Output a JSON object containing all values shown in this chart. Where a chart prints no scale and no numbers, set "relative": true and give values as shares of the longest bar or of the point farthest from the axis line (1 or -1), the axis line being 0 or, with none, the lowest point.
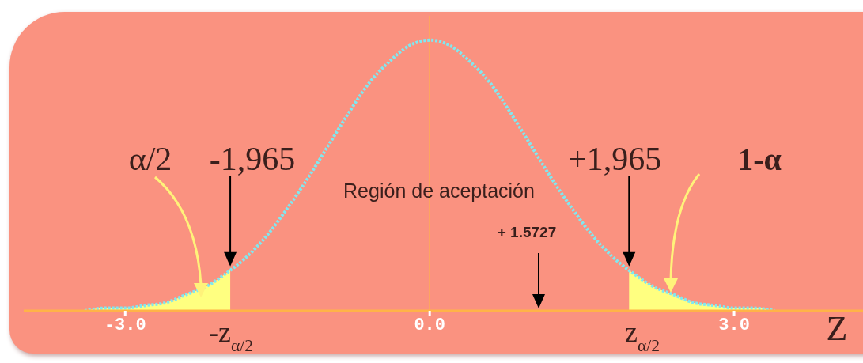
{
  "chart_data": {
    "type": "line",
    "relative": true,
    "xlabel": "Z",
    "xlim": [
      -4.0,
      4.27
    ],
    "xticks": [
      {
        "value": -3,
        "label": "-3.0"
      },
      {
        "value": 0,
        "label": "0.0"
      },
      {
        "value": 3,
        "label": "3.0"
      }
    ],
    "x": [
      -3.4,
      -3.2,
      -3.0,
      -2.8,
      -2.6,
      -2.4,
      -2.2,
      -2.0,
      -1.8,
      -1.6,
      -1.4,
      -1.2,
      -1.0,
      -0.8,
      -0.6,
      -0.4,
      -0.2,
      0,
      0.2,
      0.4,
      0.6,
      0.8,
      1.0,
      1.2,
      1.4,
      1.6,
      1.8,
      2.0,
      2.2,
      2.4,
      2.6,
      2.8,
      3.0,
      3.2,
      3.4
    ],
    "series": [
      {
        "type": "area",
        "color": "#ffff80",
        "x": [
          -3.4,
          -3.2,
          -3.0,
          -2.8,
          -2.6,
          -2.4,
          -2.2,
          -2.0,
          -1.965
        ],
        "values": [
          0.0,
          0.01,
          0.01,
          0.02,
          0.03,
          0.06,
          0.09,
          0.14,
          0.15
        ]
      },
      {
        "type": "area",
        "color": "#ffff80",
        "x": [
          1.965,
          2.0,
          2.2,
          2.4,
          2.6,
          2.8,
          3.0,
          3.2,
          3.4
        ],
        "values": [
          0.15,
          0.14,
          0.09,
          0.06,
          0.03,
          0.02,
          0.01,
          0.01,
          0.0
        ]
      },
      {
        "color": "#80e8f0",
        "line_style": "dotted",
        "values": [
          0.0,
          0.01,
          0.01,
          0.02,
          0.03,
          0.06,
          0.09,
          0.14,
          0.2,
          0.28,
          0.38,
          0.49,
          0.61,
          0.73,
          0.84,
          0.92,
          0.98,
          1,
          0.98,
          0.92,
          0.84,
          0.73,
          0.61,
          0.49,
          0.38,
          0.28,
          0.2,
          0.14,
          0.09,
          0.06,
          0.03,
          0.02,
          0.01,
          0.01,
          0.0
        ]
      }
    ],
    "ref_lines": [
      {
        "axis": "x",
        "value": 0,
        "color": "#ffb347"
      }
    ],
    "annotations": [
      "α/2",
      {
        "text": "-1,965",
        "x": -1.965,
        "y": 0.15
      },
      "Región de aceptación",
      "+ 1.5727",
      {
        "text": "+1,965",
        "x": 1.965,
        "y": 0.15
      },
      "1-α",
      "-z$_{α/2}$",
      "z$_{α/2}$"
    ]
  }
}
